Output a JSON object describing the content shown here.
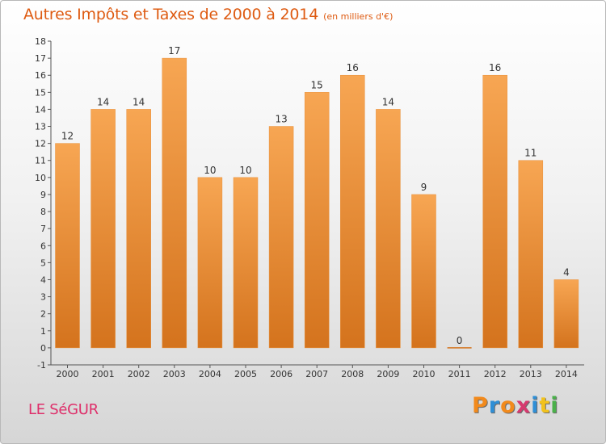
{
  "chart_data": {
    "type": "bar",
    "title": "Autres Impôts et Taxes de 2000 à 2014",
    "subtitle": "(en milliers d'€)",
    "categories": [
      "2000",
      "2001",
      "2002",
      "2003",
      "2004",
      "2005",
      "2006",
      "2007",
      "2008",
      "2009",
      "2010",
      "2011",
      "2012",
      "2013",
      "2014"
    ],
    "values": [
      12,
      14,
      14,
      17,
      10,
      10,
      13,
      15,
      16,
      14,
      9,
      0,
      16,
      11,
      4
    ],
    "data_labels": [
      "12",
      "14",
      "14",
      "17",
      "10",
      "10",
      "13",
      "15",
      "16",
      "14",
      "9",
      "0",
      "16",
      "11",
      "4"
    ],
    "ylim": [
      -1,
      18
    ],
    "yticks": [
      -1,
      0,
      1,
      2,
      3,
      4,
      5,
      6,
      7,
      8,
      9,
      10,
      11,
      12,
      13,
      14,
      15,
      16,
      17,
      18
    ],
    "ytick_labels": [
      "-1",
      "0",
      "1",
      "2",
      "3",
      "4",
      "5",
      "6",
      "7",
      "8",
      "9",
      "10",
      "11",
      "12",
      "13",
      "14",
      "15",
      "16",
      "17",
      "18"
    ],
    "xlabel": "",
    "ylabel": "",
    "grid": false,
    "legend": "none",
    "colors": {
      "bar_light": "#f7a653",
      "bar_dark": "#d4731d",
      "axis": "#555555",
      "label": "#333333"
    }
  },
  "footer": {
    "commune": "LE SéGUR",
    "logo_letters": [
      "P",
      "r",
      "o",
      "x",
      "i",
      "t",
      "i"
    ],
    "logo_colors": [
      "#f28a1c",
      "#2f8fd6",
      "#f28a1c",
      "#d63a6f",
      "#2f8fd6",
      "#f2c21c",
      "#4ab04a"
    ]
  }
}
